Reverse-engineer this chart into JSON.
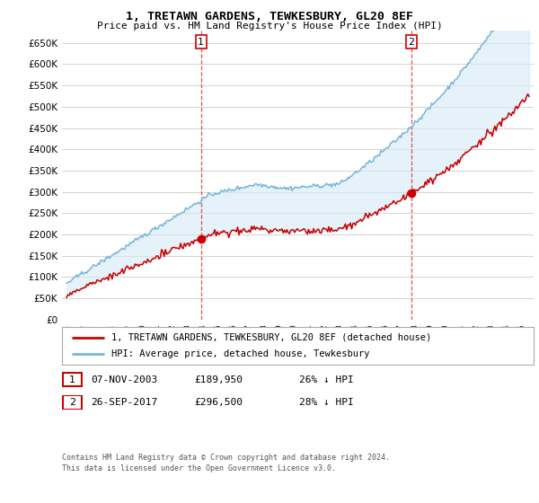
{
  "title": "1, TRETAWN GARDENS, TEWKESBURY, GL20 8EF",
  "subtitle": "Price paid vs. HM Land Registry's House Price Index (HPI)",
  "ytick_vals": [
    0,
    50000,
    100000,
    150000,
    200000,
    250000,
    300000,
    350000,
    400000,
    450000,
    500000,
    550000,
    600000,
    650000
  ],
  "ylabel_ticks": [
    "£0",
    "£50K",
    "£100K",
    "£150K",
    "£200K",
    "£250K",
    "£300K",
    "£350K",
    "£400K",
    "£450K",
    "£500K",
    "£550K",
    "£600K",
    "£650K"
  ],
  "ylim": [
    0,
    680000
  ],
  "xlim_start": 1994.7,
  "xlim_end": 2025.8,
  "sale1_x": 2003.86,
  "sale1_y": 189950,
  "sale2_x": 2017.73,
  "sale2_y": 296500,
  "hpi_color": "#7ab5d8",
  "hpi_fill_color": "#d6eaf8",
  "price_color": "#cc0000",
  "vline_color": "#cc0000",
  "grid_color": "#cccccc",
  "legend_label_price": "1, TRETAWN GARDENS, TEWKESBURY, GL20 8EF (detached house)",
  "legend_label_hpi": "HPI: Average price, detached house, Tewkesbury",
  "sale1_date": "07-NOV-2003",
  "sale1_price": "£189,950",
  "sale1_hpi": "26% ↓ HPI",
  "sale2_date": "26-SEP-2017",
  "sale2_price": "£296,500",
  "sale2_hpi": "28% ↓ HPI",
  "footer1": "Contains HM Land Registry data © Crown copyright and database right 2024.",
  "footer2": "This data is licensed under the Open Government Licence v3.0."
}
